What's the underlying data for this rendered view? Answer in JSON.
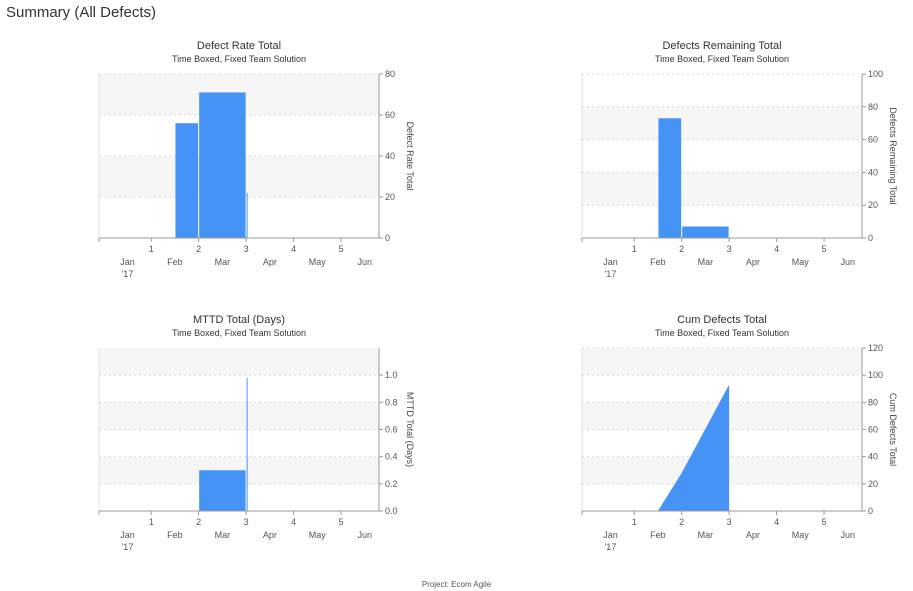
{
  "page": {
    "title": "Summary (All Defects)",
    "footer": "Project: Ecom Agile"
  },
  "colors": {
    "series": "#4593f5",
    "band": "#f6f6f6",
    "grid": "#d8d8d8",
    "axis": "#9a9a9a"
  },
  "chart_data": [
    {
      "type": "bar",
      "title": "Defect Rate Total",
      "subtitle": "Time Boxed, Fixed Team Solution",
      "ylabel": "Defect Rate Total",
      "xlabel": "",
      "ylim": [
        0,
        80
      ],
      "yticks": [
        0,
        20,
        40,
        60,
        80
      ],
      "ytick_labels": [
        "0",
        "20",
        "40",
        "60",
        "80"
      ],
      "band_pairs": [
        [
          20,
          40
        ],
        [
          60,
          80
        ]
      ],
      "xlim": [
        -0.1,
        5.8
      ],
      "number_ticks": [
        1,
        2,
        3,
        4,
        5
      ],
      "month_labels": [
        {
          "label": "Jan",
          "x": 0.5
        },
        {
          "label": "Feb",
          "x": 1.5
        },
        {
          "label": "Mar",
          "x": 2.5
        },
        {
          "label": "Apr",
          "x": 3.5
        },
        {
          "label": "May",
          "x": 4.5
        },
        {
          "label": "Jun",
          "x": 5.5
        }
      ],
      "year_label": "'17",
      "bars": [
        {
          "x0": 1.5,
          "x1": 2.0,
          "value": 56
        },
        {
          "x0": 2.0,
          "x1": 3.0,
          "value": 71
        },
        {
          "x0": 3.0,
          "x1": 3.04,
          "value": 22
        }
      ]
    },
    {
      "type": "bar",
      "title": "Defects Remaining Total",
      "subtitle": "Time Boxed, Fixed Team Solution",
      "ylabel": "Defects Remaining Total",
      "xlabel": "",
      "ylim": [
        0,
        100
      ],
      "yticks": [
        0,
        20,
        40,
        60,
        80,
        100
      ],
      "ytick_labels": [
        "0",
        "20",
        "40",
        "60",
        "80",
        "100"
      ],
      "band_pairs": [
        [
          20,
          40
        ],
        [
          60,
          80
        ]
      ],
      "xlim": [
        -0.1,
        5.8
      ],
      "number_ticks": [
        1,
        2,
        3,
        4,
        5
      ],
      "month_labels": [
        {
          "label": "Jan",
          "x": 0.5
        },
        {
          "label": "Feb",
          "x": 1.5
        },
        {
          "label": "Mar",
          "x": 2.5
        },
        {
          "label": "Apr",
          "x": 3.5
        },
        {
          "label": "May",
          "x": 4.5
        },
        {
          "label": "Jun",
          "x": 5.5
        }
      ],
      "year_label": "'17",
      "bars": [
        {
          "x0": 1.5,
          "x1": 2.0,
          "value": 73
        },
        {
          "x0": 2.0,
          "x1": 3.0,
          "value": 7
        }
      ]
    },
    {
      "type": "bar",
      "title": "MTTD Total (Days)",
      "subtitle": "Time Boxed, Fixed Team Solution",
      "ylabel": "MTTD Total (Days)",
      "xlabel": "",
      "ylim": [
        0,
        1.2
      ],
      "yticks": [
        0,
        0.2,
        0.4,
        0.6,
        0.8,
        1.0
      ],
      "ytick_labels": [
        "0.0",
        "0.2",
        "0.4",
        "0.6",
        "0.8",
        "1.0"
      ],
      "band_pairs": [
        [
          0.2,
          0.4
        ],
        [
          0.6,
          0.8
        ],
        [
          1.0,
          1.2
        ]
      ],
      "xlim": [
        -0.1,
        5.8
      ],
      "number_ticks": [
        1,
        2,
        3,
        4,
        5
      ],
      "month_labels": [
        {
          "label": "Jan",
          "x": 0.5
        },
        {
          "label": "Feb",
          "x": 1.5
        },
        {
          "label": "Mar",
          "x": 2.5
        },
        {
          "label": "Apr",
          "x": 3.5
        },
        {
          "label": "May",
          "x": 4.5
        },
        {
          "label": "Jun",
          "x": 5.5
        }
      ],
      "year_label": "'17",
      "bars": [
        {
          "x0": 2.0,
          "x1": 3.0,
          "value": 0.3
        },
        {
          "x0": 3.0,
          "x1": 3.03,
          "value": 0.98
        }
      ]
    },
    {
      "type": "area",
      "title": "Cum Defects Total",
      "subtitle": "Time Boxed, Fixed Team Solution",
      "ylabel": "Cum Defects Total",
      "xlabel": "",
      "ylim": [
        0,
        120
      ],
      "yticks": [
        0,
        20,
        40,
        60,
        80,
        100,
        120
      ],
      "ytick_labels": [
        "0",
        "20",
        "40",
        "60",
        "80",
        "100",
        "120"
      ],
      "band_pairs": [
        [
          20,
          40
        ],
        [
          60,
          80
        ],
        [
          100,
          120
        ]
      ],
      "xlim": [
        -0.1,
        5.8
      ],
      "number_ticks": [
        1,
        2,
        3,
        4,
        5
      ],
      "month_labels": [
        {
          "label": "Jan",
          "x": 0.5
        },
        {
          "label": "Feb",
          "x": 1.5
        },
        {
          "label": "Mar",
          "x": 2.5
        },
        {
          "label": "Apr",
          "x": 3.5
        },
        {
          "label": "May",
          "x": 4.5
        },
        {
          "label": "Jun",
          "x": 5.5
        }
      ],
      "year_label": "'17",
      "points": [
        {
          "x": 1.5,
          "y": 0
        },
        {
          "x": 2.0,
          "y": 28
        },
        {
          "x": 3.0,
          "y": 93
        }
      ]
    }
  ]
}
